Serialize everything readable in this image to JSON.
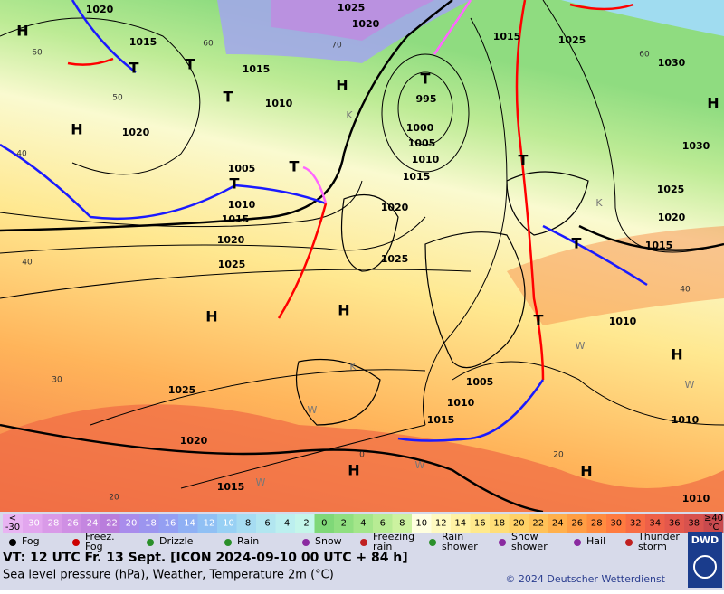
{
  "map": {
    "isobar_labels": [
      "1020",
      "1025",
      "1020",
      "1015",
      "1015",
      "995",
      "1015",
      "1025",
      "1030",
      "1010",
      "1020",
      "1000",
      "1005",
      "1010",
      "1015",
      "1030",
      "1005",
      "1010",
      "1015",
      "1020",
      "1025",
      "1020",
      "1020",
      "1015",
      "1025",
      "1025",
      "1010",
      "1005",
      "1010",
      "1025",
      "1015",
      "1010",
      "1020",
      "1015",
      "1010"
    ],
    "temperature_labels": [
      "60",
      "50",
      "40",
      "40",
      "30",
      "20",
      "60",
      "70",
      "60",
      "40",
      "0",
      "20"
    ],
    "pressure_centers": [
      "H",
      "H",
      "T",
      "T",
      "T",
      "H",
      "T",
      "T",
      "T",
      "H",
      "H",
      "T",
      "T",
      "T",
      "H",
      "H",
      "H",
      "H"
    ],
    "symbols": [
      "K",
      "K",
      "K",
      "W",
      "W",
      "W",
      "W",
      "W"
    ]
  },
  "colorbar": {
    "below_label": [
      "<",
      "-30"
    ],
    "values": [
      -30,
      -28,
      -26,
      -24,
      -22,
      -20,
      -18,
      -16,
      -14,
      -12,
      -10,
      -8,
      -6,
      -4,
      -2,
      0,
      2,
      4,
      6,
      8,
      10,
      12,
      14,
      16,
      18,
      20,
      22,
      24,
      26,
      28,
      30,
      32,
      34,
      36,
      38
    ],
    "colors": [
      "#e2a6ee",
      "#d99ae8",
      "#cf8fe4",
      "#c486e0",
      "#b97ddc",
      "#a98cec",
      "#9c95ef",
      "#949ff2",
      "#8fb0f4",
      "#90c0f4",
      "#98d0f4",
      "#a6dcf2",
      "#b2e6f0",
      "#bcefef",
      "#c4f6ea",
      "#7fd878",
      "#90df80",
      "#a4e68a",
      "#b8ec94",
      "#ccf2a0",
      "#ffffe0",
      "#fffac0",
      "#fff2a4",
      "#ffe98c",
      "#ffde78",
      "#ffd166",
      "#ffc258",
      "#ffb04c",
      "#ff9e44",
      "#ff8c40",
      "#ff7b40",
      "#f86c44",
      "#ee6048",
      "#e4584c",
      "#d8524e"
    ],
    "above_label": [
      "≥40",
      "°C"
    ]
  },
  "legend": [
    {
      "label": [
        "Fog"
      ]
    },
    {
      "label": [
        "Freez.",
        "Fog"
      ]
    },
    {
      "label": [
        "Drizzle"
      ]
    },
    {
      "label": [
        "Rain"
      ]
    },
    {
      "label": [
        "Snow"
      ]
    },
    {
      "label": [
        "Freezing",
        "rain"
      ]
    },
    {
      "label": [
        "Rain",
        "shower"
      ]
    },
    {
      "label": [
        "Snow",
        "shower"
      ]
    },
    {
      "label": [
        "Hail"
      ]
    },
    {
      "label": [
        "Thunder",
        "storm"
      ]
    }
  ],
  "footer": {
    "valid_time": "VT: 12 UTC Fr.  13 Sept. [ICON 2024-09-10  00 UTC + 84 h]",
    "description": "Sea level pressure (hPa), Weather, Temperature 2m (°C)",
    "copyright": "© 2024 Deutscher Wetterdienst",
    "logo": "DWD"
  }
}
